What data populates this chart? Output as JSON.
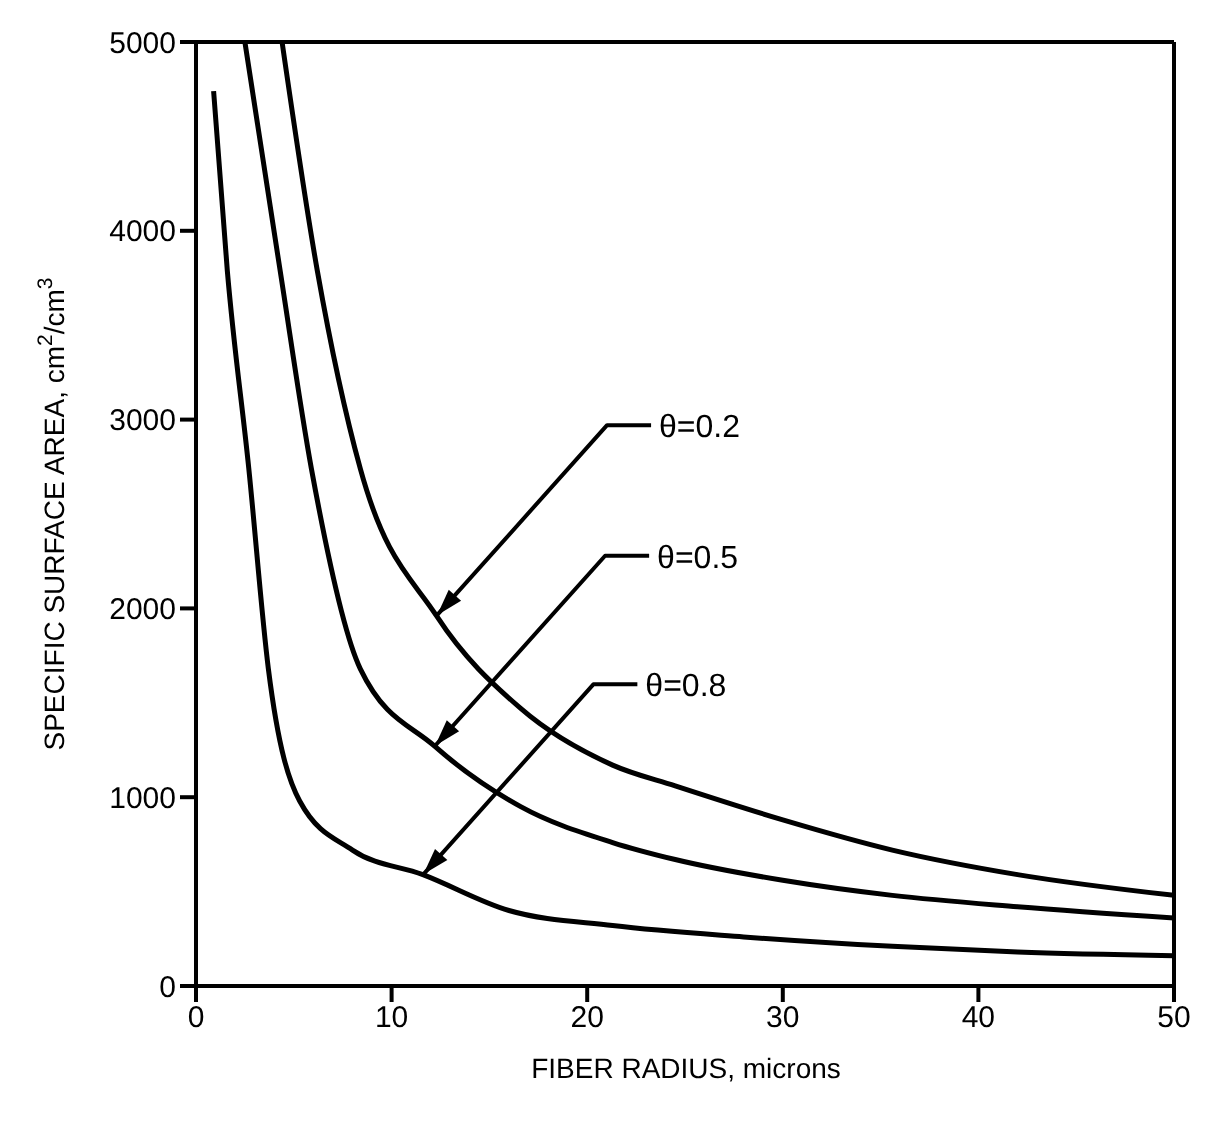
{
  "chart_data": {
    "type": "line",
    "xlabel": "FIBER RADIUS, microns",
    "ylabel": "SPECIFIC SURFACE AREA, cm$^{2}$/cm$^{3}$",
    "xlim": [
      0,
      50
    ],
    "xticks": [
      0,
      10,
      20,
      30,
      40,
      50
    ],
    "ylim": [
      0,
      5000
    ],
    "yticks": [
      0,
      1000,
      2000,
      3000,
      4000,
      5000
    ],
    "marker": "none",
    "line_style": "solid",
    "series": [
      {
        "color": "#000000",
        "x": [
          4.4,
          6.2,
          8.4,
          12.3,
          16.6,
          21.3,
          24.5,
          30,
          35.6,
          42,
          50
        ],
        "values": [
          5000,
          3790,
          2740,
          1960,
          1470,
          1170,
          1060,
          880,
          720,
          590,
          480
        ]
      },
      {
        "color": "#000000",
        "x": [
          2.5,
          4.3,
          5.9,
          8.4,
          12.2,
          16.6,
          21.3,
          24.5,
          30,
          35.6,
          42,
          50
        ],
        "values": [
          5000,
          3790,
          2740,
          1680,
          1270,
          950,
          760,
          670,
          560,
          480,
          420,
          360
        ]
      },
      {
        "color": "#000000",
        "x": [
          0.9,
          1.6,
          2.7,
          3.7,
          5.3,
          8,
          11.6,
          16,
          21.3,
          28,
          35.6,
          42,
          50
        ],
        "values": [
          4740,
          3790,
          2740,
          1680,
          980,
          720,
          590,
          400,
          320,
          260,
          210,
          180,
          160
        ]
      }
    ],
    "annotations": [
      {
        "text": "θ=0.2",
        "x": 12.3,
        "y": 1960
      },
      {
        "text": "θ=0.5",
        "x": 12.2,
        "y": 1270
      },
      {
        "text": "θ=0.8",
        "x": 11.6,
        "y": 590
      }
    ]
  }
}
